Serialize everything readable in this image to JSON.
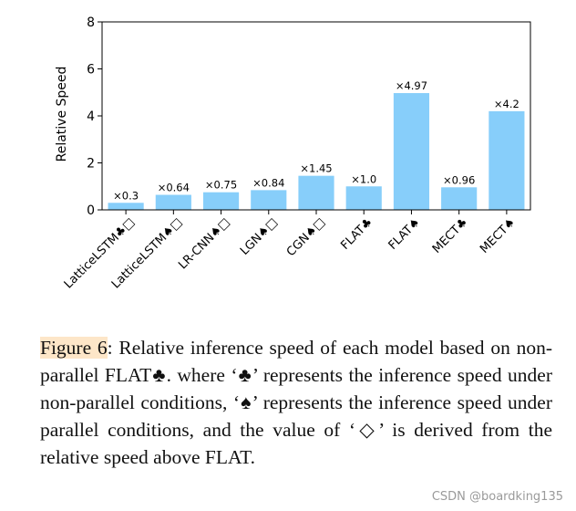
{
  "chart_data": {
    "type": "bar",
    "title": "",
    "xlabel": "",
    "ylabel": "Relative Speed",
    "ylim": [
      0,
      8
    ],
    "yticks": [
      0,
      2,
      4,
      6,
      8
    ],
    "categories": [
      "LatticeLSTM♣□",
      "LatticeLSTM♠□",
      "LR-CNN♠□",
      "LGN♠□",
      "CGN♠□",
      "FLAT♣",
      "FLAT♠",
      "MECT♣",
      "MECT♠"
    ],
    "values": [
      0.3,
      0.64,
      0.75,
      0.84,
      1.45,
      1.0,
      4.97,
      0.96,
      4.2
    ],
    "value_labels": [
      "×0.3",
      "×0.64",
      "×0.75",
      "×0.84",
      "×1.45",
      "×1.0",
      "×4.97",
      "×0.96",
      "×4.2"
    ],
    "bar_color": "#87cefa"
  },
  "caption": {
    "label": "Figure 6",
    "text": ":   Relative inference speed of each model based on non-parallel FLAT♣.  where ‘♣’ represents the inference speed under non-parallel conditions, ‘♠’ represents the inference speed under parallel conditions, and the value of ‘◇’ is derived from the relative speed above FLAT."
  },
  "watermark": "CSDN @boardking135"
}
